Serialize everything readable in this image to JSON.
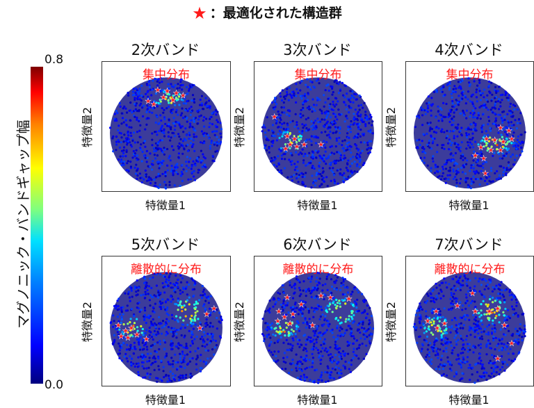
{
  "legend": {
    "star_symbol": "★",
    "label": "：最適化された構造群",
    "star_color": "#ff1a1a"
  },
  "colorbar": {
    "label": "マグノニック・バンドギャップ幅",
    "max_label": "0.8",
    "min_label": "0.0",
    "range": [
      0.0,
      0.8
    ],
    "colormap": "jet"
  },
  "chart_data": [
    {
      "type": "scatter",
      "title": "2次バンド",
      "annotation": "集中分布",
      "xlabel": "特徴量1",
      "ylabel": "特徴量2",
      "distribution": "concentrated-top",
      "optimized_points": [
        [
          -0.15,
          0.78
        ],
        [
          0.02,
          0.76
        ],
        [
          0.18,
          0.72
        ],
        [
          0.3,
          0.68
        ],
        [
          -0.05,
          0.65
        ],
        [
          0.12,
          0.6
        ],
        [
          -0.32,
          0.58
        ],
        [
          -0.22,
          0.52
        ]
      ]
    },
    {
      "type": "scatter",
      "title": "3次バンド",
      "annotation": "集中分布",
      "xlabel": "特徴量1",
      "ylabel": "特徴量2",
      "distribution": "concentrated-lower-left",
      "optimized_points": [
        [
          -0.78,
          0.3
        ],
        [
          -0.55,
          -0.05
        ],
        [
          -0.42,
          -0.1
        ],
        [
          -0.5,
          -0.2
        ],
        [
          -0.38,
          -0.24
        ],
        [
          -0.25,
          -0.2
        ],
        [
          -0.58,
          -0.28
        ],
        [
          0.05,
          -0.2
        ]
      ]
    },
    {
      "type": "scatter",
      "title": "4次バンド",
      "annotation": "集中分布",
      "xlabel": "特徴量1",
      "ylabel": "特徴量2",
      "distribution": "concentrated-lower-right",
      "optimized_points": [
        [
          0.55,
          0.1
        ],
        [
          0.7,
          0.05
        ],
        [
          0.3,
          -0.1
        ],
        [
          0.45,
          -0.12
        ],
        [
          0.6,
          -0.15
        ],
        [
          0.75,
          -0.1
        ],
        [
          0.2,
          -0.25
        ],
        [
          0.38,
          -0.3
        ],
        [
          0.55,
          -0.3
        ],
        [
          0.1,
          -0.4
        ],
        [
          0.25,
          -0.45
        ],
        [
          0.28,
          -0.72
        ]
      ]
    },
    {
      "type": "scatter",
      "title": "5次バンド",
      "annotation": "離散的に分布",
      "xlabel": "特徴量1",
      "ylabel": "特徴量2",
      "distribution": "dispersed",
      "optimized_points": [
        [
          -0.85,
          0.05
        ],
        [
          -0.72,
          -0.05
        ],
        [
          -0.62,
          0.0
        ],
        [
          -0.8,
          -0.15
        ],
        [
          -0.68,
          -0.18
        ],
        [
          -0.52,
          -0.12
        ],
        [
          -0.35,
          -0.2
        ],
        [
          0.72,
          0.25
        ],
        [
          0.85,
          0.35
        ],
        [
          0.6,
          0.0
        ]
      ]
    },
    {
      "type": "scatter",
      "title": "6次バンド",
      "annotation": "離散的に分布",
      "xlabel": "特徴量1",
      "ylabel": "特徴量2",
      "distribution": "dispersed",
      "optimized_points": [
        [
          -0.55,
          0.55
        ],
        [
          -0.7,
          0.3
        ],
        [
          -0.6,
          0.2
        ],
        [
          -0.45,
          0.25
        ],
        [
          -0.72,
          0.12
        ],
        [
          -0.5,
          0.08
        ],
        [
          -0.3,
          0.42
        ],
        [
          -0.1,
          0.05
        ],
        [
          0.05,
          0.58
        ],
        [
          0.22,
          0.55
        ],
        [
          0.55,
          0.52
        ]
      ]
    },
    {
      "type": "scatter",
      "title": "7次バンド",
      "annotation": "離散的に分布",
      "xlabel": "特徴量1",
      "ylabel": "特徴量2",
      "distribution": "dispersed",
      "optimized_points": [
        [
          -0.6,
          0.3
        ],
        [
          -0.75,
          0.12
        ],
        [
          -0.58,
          0.0
        ],
        [
          -0.45,
          0.08
        ],
        [
          -0.22,
          0.4
        ],
        [
          0.05,
          0.62
        ],
        [
          0.1,
          0.3
        ],
        [
          0.35,
          0.3
        ],
        [
          0.5,
          0.35
        ],
        [
          0.62,
          0.05
        ],
        [
          0.75,
          -0.28
        ],
        [
          0.5,
          -0.55
        ]
      ]
    }
  ]
}
